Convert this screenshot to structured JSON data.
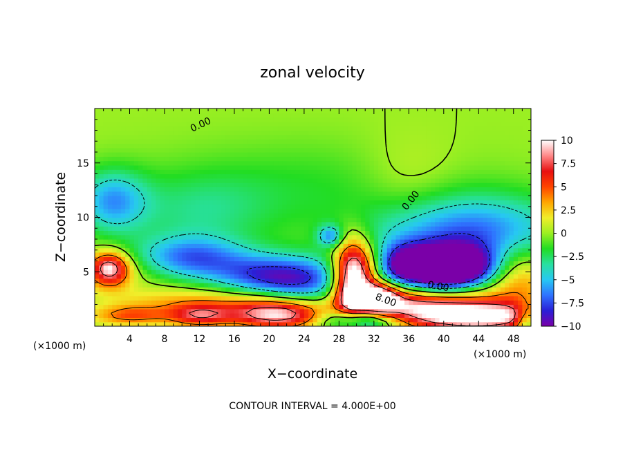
{
  "chart_data": {
    "type": "heatmap",
    "title": "zonal velocity",
    "xlabel": "X−coordinate",
    "ylabel": "Z−coordinate",
    "x_multiplier_left": "(×1000 m)",
    "x_multiplier_right": "(×1000 m)",
    "xlim": [
      0,
      50
    ],
    "ylim": [
      0,
      20
    ],
    "x_ticks": [
      "4",
      "8",
      "12",
      "16",
      "20",
      "24",
      "28",
      "32",
      "36",
      "40",
      "44",
      "48"
    ],
    "x_tick_values": [
      4,
      8,
      12,
      16,
      20,
      24,
      28,
      32,
      36,
      40,
      44,
      48
    ],
    "y_ticks": [
      "5",
      "10",
      "15"
    ],
    "y_tick_values": [
      5,
      10,
      15
    ],
    "colorbar": {
      "range": [
        -10,
        10
      ],
      "ticks": [
        "10",
        "7.5",
        "5",
        "2.5",
        "0",
        "−2.5",
        "−5",
        "−7.5",
        "−10"
      ],
      "tick_values": [
        10,
        7.5,
        5,
        2.5,
        0,
        -2.5,
        -5,
        -7.5,
        -10
      ],
      "colors": [
        "#7a00a8",
        "#2a1fd6",
        "#2f73ff",
        "#27c8f2",
        "#28e0a0",
        "#22dd22",
        "#9cef22",
        "#f0ee2a",
        "#ffa500",
        "#ff4400",
        "#e81010",
        "#ff8888",
        "#ffffff"
      ]
    },
    "contour_labels": [
      "0.00",
      "0.00",
      "0.00",
      "8.00"
    ],
    "contour_interval_text": "CONTOUR INTERVAL = 4.000E+00",
    "features": [
      {
        "x": 0,
        "z": 5.0,
        "value": 1.5,
        "sx": 5.5,
        "sz": 1.2
      },
      {
        "x": 25,
        "z": 13.0,
        "value": -1.5,
        "sx": 12,
        "sz": 3
      },
      {
        "x": 2,
        "z": 11.5,
        "value": -5.5,
        "sx": 2.8,
        "sz": 2.0
      },
      {
        "x": 12,
        "z": 10.5,
        "value": -2.5,
        "sx": 6,
        "sz": 2.5
      },
      {
        "x": 1.8,
        "z": 5.3,
        "value": 8.5,
        "sx": 1.6,
        "sz": 1.1
      },
      {
        "x": 1.5,
        "z": 5.4,
        "value": 1.5,
        "sx": 0.6,
        "sz": 0.4
      },
      {
        "x": 9,
        "z": 2.2,
        "value": 2.5,
        "sx": 5.5,
        "sz": 1.0
      },
      {
        "x": 4,
        "z": 1.0,
        "value": 4.5,
        "sx": 3,
        "sz": 0.6
      },
      {
        "x": 12,
        "z": 1.0,
        "value": 6.5,
        "sx": 2.5,
        "sz": 0.7
      },
      {
        "x": 11,
        "z": 6.3,
        "value": -6.5,
        "sx": 4.5,
        "sz": 1.4
      },
      {
        "x": 20,
        "z": 4.6,
        "value": -7.5,
        "sx": 4.5,
        "sz": 1.4
      },
      {
        "x": 25,
        "z": 4.0,
        "value": -4.0,
        "sx": 3.5,
        "sz": 1.5
      },
      {
        "x": 21,
        "z": 1.1,
        "value": 9.5,
        "sx": 3.8,
        "sz": 0.9
      },
      {
        "x": 18,
        "z": 2.3,
        "value": 2.5,
        "sx": 5,
        "sz": 1.0
      },
      {
        "x": 29.5,
        "z": 4.0,
        "value": 12,
        "sx": 1.5,
        "sz": 2.6
      },
      {
        "x": 32.5,
        "z": 2.5,
        "value": 9.5,
        "sx": 1.6,
        "sz": 1.0
      },
      {
        "x": 31,
        "z": 5.5,
        "value": 3.5,
        "sx": 2.0,
        "sz": 1.5
      },
      {
        "x": 30.3,
        "z": 0.6,
        "value": -9,
        "sx": 2.8,
        "sz": 0.7
      },
      {
        "x": 36,
        "z": 2.3,
        "value": 8.5,
        "sx": 4.5,
        "sz": 1.2
      },
      {
        "x": 44,
        "z": 0.9,
        "value": 11,
        "sx": 5.5,
        "sz": 1.0
      },
      {
        "x": 44,
        "z": 3.0,
        "value": 2.0,
        "sx": 6,
        "sz": 1.3
      },
      {
        "x": 40.5,
        "z": 5.3,
        "value": -16,
        "sx": 3.5,
        "sz": 1.4
      },
      {
        "x": 43,
        "z": 8.5,
        "value": -7,
        "sx": 8,
        "sz": 2.5
      },
      {
        "x": 35,
        "z": 5.5,
        "value": -6.5,
        "sx": 2.2,
        "sz": 1.5
      },
      {
        "x": 38,
        "z": 3.2,
        "value": -2.5,
        "sx": 2.5,
        "sz": 0.9
      },
      {
        "x": 27,
        "z": 8.3,
        "value": -5.5,
        "sx": 1.0,
        "sz": 0.7
      },
      {
        "x": 48.5,
        "z": 5.0,
        "value": 4.0,
        "sx": 2.5,
        "sz": 2.0
      },
      {
        "x": 49.5,
        "z": 0.5,
        "value": -5.0,
        "sx": 0.8,
        "sz": 1.0
      },
      {
        "x": 36,
        "z": 13.0,
        "value": 1.5,
        "sx": 4,
        "sz": 3
      }
    ]
  }
}
